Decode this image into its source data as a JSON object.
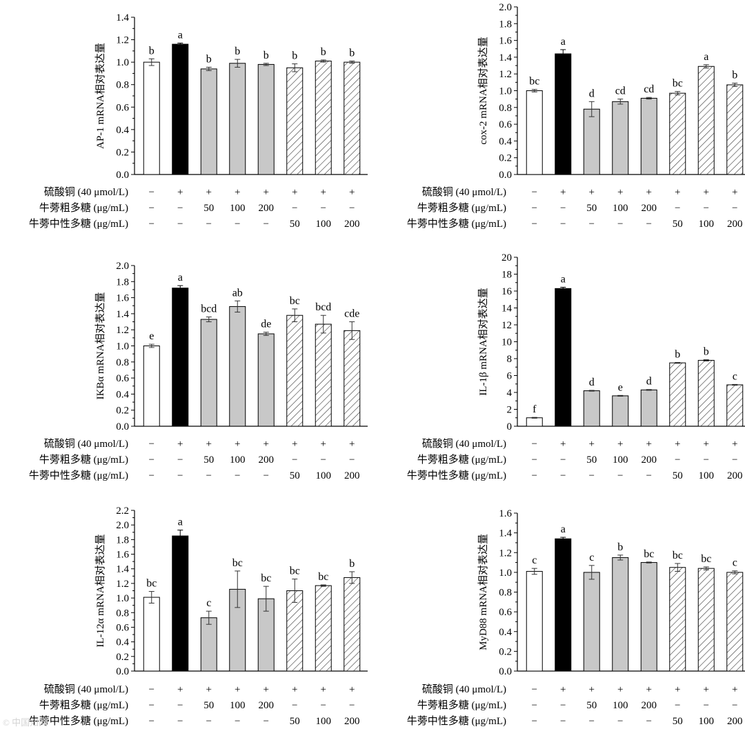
{
  "conditions": {
    "rows": [
      {
        "label": "硫酸铜 (40 μmol/L)",
        "values": [
          "−",
          "+",
          "+",
          "+",
          "+",
          "+",
          "+",
          "+"
        ]
      },
      {
        "label": "牛蒡粗多糖 (μg/mL)",
        "values": [
          "−",
          "−",
          "50",
          "100",
          "200",
          "−",
          "−",
          "−"
        ]
      },
      {
        "label": "牛蒡中性多糖 (μg/mL)",
        "values": [
          "−",
          "−",
          "−",
          "−",
          "−",
          "50",
          "100",
          "200"
        ]
      }
    ]
  },
  "colors": {
    "control": "#ffffff",
    "model": "#000000",
    "crude": "#c8c8c8",
    "neutral_hatch": "#444444",
    "axis": "#000000"
  },
  "watermark": {
    "text": "© 中国知网"
  },
  "chart_data": [
    {
      "type": "bar",
      "id": "ap1",
      "ylabel": "AP-1 mRNA相对表达量",
      "ylim": [
        0,
        1.4
      ],
      "yticks": [
        "0.0",
        "0.2",
        "0.4",
        "0.6",
        "0.8",
        "1.0",
        "1.2",
        "1.4"
      ],
      "values": [
        1.0,
        1.16,
        0.94,
        0.99,
        0.98,
        0.95,
        1.01,
        1.0
      ],
      "errors": [
        0.03,
        0.01,
        0.015,
        0.035,
        0.01,
        0.035,
        0.01,
        0.01
      ],
      "letters": [
        "b",
        "a",
        "b",
        "b",
        "b",
        "b",
        "b",
        "b"
      ]
    },
    {
      "type": "bar",
      "id": "cox2",
      "ylabel": "cox-2 mRNA相对表达量",
      "ylim": [
        0,
        2.0
      ],
      "yticks": [
        "0.0",
        "0.2",
        "0.4",
        "0.6",
        "0.8",
        "1.0",
        "1.2",
        "1.4",
        "1.6",
        "1.8",
        "2.0"
      ],
      "values": [
        1.0,
        1.44,
        0.78,
        0.87,
        0.91,
        0.97,
        1.29,
        1.07
      ],
      "errors": [
        0.015,
        0.05,
        0.09,
        0.03,
        0.01,
        0.02,
        0.02,
        0.02
      ],
      "letters": [
        "bc",
        "a",
        "d",
        "cd",
        "cd",
        "bc",
        "a",
        "b"
      ]
    },
    {
      "type": "bar",
      "id": "ikba",
      "ylabel": "IKBα mRNA相对表达量",
      "ylim": [
        0,
        2.0
      ],
      "yticks": [
        "0.0",
        "0.2",
        "0.4",
        "0.6",
        "0.8",
        "1.0",
        "1.2",
        "1.4",
        "1.6",
        "1.8",
        "2.0"
      ],
      "values": [
        1.0,
        1.72,
        1.33,
        1.49,
        1.15,
        1.38,
        1.27,
        1.19
      ],
      "errors": [
        0.02,
        0.03,
        0.03,
        0.07,
        0.02,
        0.08,
        0.11,
        0.11
      ],
      "letters": [
        "e",
        "a",
        "bcd",
        "ab",
        "de",
        "bc",
        "bcd",
        "cde"
      ]
    },
    {
      "type": "bar",
      "id": "il1b",
      "ylabel": "IL-1β mRNA相对表达量",
      "ylim": [
        0,
        20
      ],
      "yticks": [
        "0",
        "2",
        "4",
        "6",
        "8",
        "10",
        "12",
        "14",
        "16",
        "18",
        "20"
      ],
      "values": [
        1.0,
        16.3,
        4.2,
        3.6,
        4.3,
        7.5,
        7.8,
        4.9
      ],
      "errors": [
        0.05,
        0.15,
        0.05,
        0.05,
        0.05,
        0.05,
        0.08,
        0.05
      ],
      "letters": [
        "f",
        "a",
        "d",
        "e",
        "d",
        "b",
        "b",
        "c"
      ]
    },
    {
      "type": "bar",
      "id": "il12a",
      "ylabel": "IL-12α mRNA相对表达量",
      "ylim": [
        0,
        2.2
      ],
      "yticks": [
        "0.0",
        "0.2",
        "0.4",
        "0.6",
        "0.8",
        "1.0",
        "1.2",
        "1.4",
        "1.6",
        "1.8",
        "2.0",
        "2.2"
      ],
      "values": [
        1.01,
        1.85,
        0.73,
        1.12,
        0.99,
        1.1,
        1.17,
        1.28
      ],
      "errors": [
        0.08,
        0.08,
        0.09,
        0.25,
        0.17,
        0.16,
        0.01,
        0.08
      ],
      "letters": [
        "bc",
        "a",
        "c",
        "bc",
        "bc",
        "bc",
        "bc",
        "b"
      ]
    },
    {
      "type": "bar",
      "id": "myd88",
      "ylabel": "MyD88 mRNA相对表达量",
      "ylim": [
        0,
        1.6
      ],
      "yticks": [
        "0.0",
        "0.2",
        "0.4",
        "0.6",
        "0.8",
        "1.0",
        "1.2",
        "1.4",
        "1.6"
      ],
      "values": [
        1.01,
        1.34,
        1.0,
        1.15,
        1.1,
        1.05,
        1.04,
        1.0
      ],
      "errors": [
        0.03,
        0.015,
        0.07,
        0.025,
        0.005,
        0.04,
        0.015,
        0.015
      ],
      "letters": [
        "c",
        "a",
        "c",
        "b",
        "bc",
        "bc",
        "bc",
        "c"
      ]
    }
  ]
}
